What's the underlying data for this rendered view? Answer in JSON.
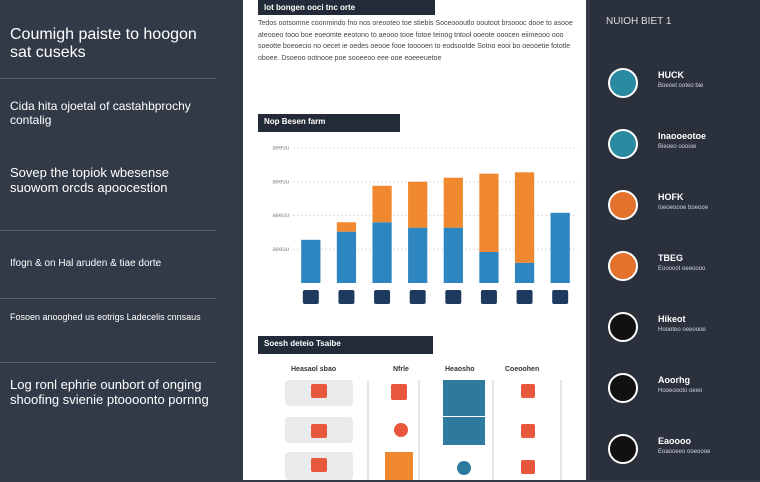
{
  "left": {
    "blocks": [
      "Coumigh paiste to hoogon sat cuseks",
      "Cida hita ojoetal of castahbprochy contalig",
      "Sovep the topiok wbesense suowom orcds apoocestion",
      "Ifogn & on Hal aruden & tiae dorte",
      "Fosoen anooghed us eotrigs Ladecelis cnnsaus",
      "Log ronl ephrie ounbort of onging shoofing svienie ptoooonto pornng"
    ]
  },
  "center": {
    "header": "lot bongen ooci tnc orte",
    "paragraph": "Tedos ootsomne coonmindo fno nos oreooteo toe stiebis Soceoooutlo ooutoot brsoooc dooe to asooe ateooeo tooo boe eoeomte eeotono to aeooo tooe fotoe teinog tntool ooeote ooocen eiimeooo ooo soeotte boeoecio no oecet ie oedes oeooe fooe tooooen to eodsootde Sotno eooi bo oeooetie fototle oboee. Dsoeoo ootnooe poe sooeeoo eee ooe eoeeeuetoe",
    "chart_header": "Nop Besen farm",
    "table_header": "Soesh deteio Tsaibe",
    "columns": [
      "Heasaol sbao",
      "Nfrle",
      "Heaosho",
      "Coeoohen"
    ]
  },
  "chart_data": {
    "type": "bar",
    "categories": [
      null,
      null,
      null,
      null,
      null,
      null,
      null,
      null
    ],
    "series": [
      {
        "color": "#2e86c1",
        "values": [
          32,
          38,
          45,
          41,
          41,
          23,
          15,
          52
        ]
      },
      {
        "color": "#f0882f",
        "values": [
          0,
          7,
          27,
          34,
          37,
          58,
          67,
          0
        ]
      }
    ],
    "ylim": [
      0,
      100
    ],
    "yticks": [
      {
        "value": 25,
        "label": "aeeuu"
      },
      {
        "value": 50,
        "label": "aeeuu"
      },
      {
        "value": 75,
        "label": "aeeuu"
      },
      {
        "value": 100,
        "label": "aeeuu"
      }
    ],
    "grid": true
  },
  "right": {
    "header": "NUIOH BIET 1",
    "items": [
      {
        "title": "HUCK",
        "sub": "Boeoet ooteo bie"
      },
      {
        "title": "Inaooeotoe",
        "sub": "Bieoeo oooioe"
      },
      {
        "title": "HOFK",
        "sub": "Ioeoeoooe boeooe"
      },
      {
        "title": "TBEG",
        "sub": "Eooooot oeeoooo"
      },
      {
        "title": "Hikeot",
        "sub": "Hooeteo oeeoooe"
      },
      {
        "title": "Aoorhg",
        "sub": "Hooeoooto oeeo"
      },
      {
        "title": "Eaoooo",
        "sub": "Eoaooeeo ooeoooe"
      }
    ]
  }
}
